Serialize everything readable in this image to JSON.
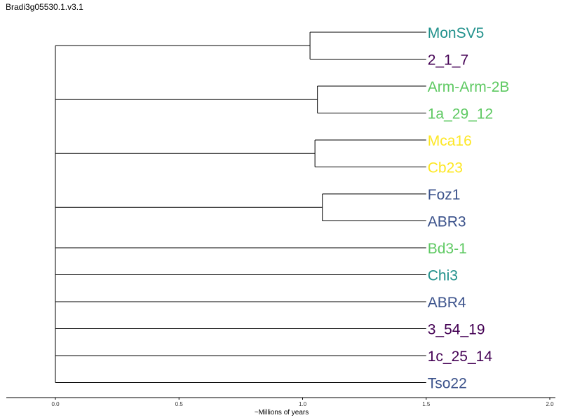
{
  "title": "Bradi3g05530.1.v3.1",
  "chart_data": {
    "type": "dendrogram",
    "xlabel": "~Millions of years",
    "xlim": [
      0.0,
      2.0
    ],
    "ticks": [
      {
        "value": 0.0,
        "label": "0.0"
      },
      {
        "value": 0.5,
        "label": "0.5"
      },
      {
        "value": 1.0,
        "label": "1.0"
      },
      {
        "value": 1.5,
        "label": "1.5"
      },
      {
        "value": 2.0,
        "label": "2.0"
      }
    ],
    "leaves_end": 1.5,
    "root_x": 0.0,
    "palette": {
      "teal": "#21918c",
      "purple": "#440154",
      "green": "#5ec962",
      "yellow": "#fde725",
      "blue": "#3b528b"
    },
    "leaves": [
      {
        "label": "MonSV5",
        "color": "#21918c"
      },
      {
        "label": "2_1_7",
        "color": "#440154"
      },
      {
        "label": "Arm-Arm-2B",
        "color": "#5ec962"
      },
      {
        "label": "1a_29_12",
        "color": "#5ec962"
      },
      {
        "label": "Mca16",
        "color": "#fde725"
      },
      {
        "label": "Cb23",
        "color": "#fde725"
      },
      {
        "label": "Foz1",
        "color": "#3b528b"
      },
      {
        "label": "ABR3",
        "color": "#3b528b"
      },
      {
        "label": "Bd3-1",
        "color": "#5ec962"
      },
      {
        "label": "Chi3",
        "color": "#21918c"
      },
      {
        "label": "ABR4",
        "color": "#3b528b"
      },
      {
        "label": "3_54_19",
        "color": "#440154"
      },
      {
        "label": "1c_25_14",
        "color": "#440154"
      },
      {
        "label": "Tso22",
        "color": "#3b528b"
      }
    ],
    "clades": [
      {
        "leaves": [
          0,
          1
        ],
        "node_x": 1.03
      },
      {
        "leaves": [
          2,
          3
        ],
        "node_x": 1.06
      },
      {
        "leaves": [
          4,
          5
        ],
        "node_x": 1.05
      },
      {
        "leaves": [
          6,
          7
        ],
        "node_x": 1.08
      },
      {
        "leaves": [
          8
        ],
        "node_x": null
      },
      {
        "leaves": [
          9
        ],
        "node_x": null
      },
      {
        "leaves": [
          10
        ],
        "node_x": null
      },
      {
        "leaves": [
          11
        ],
        "node_x": null
      },
      {
        "leaves": [
          12
        ],
        "node_x": null
      },
      {
        "leaves": [
          13
        ],
        "node_x": null
      }
    ]
  }
}
